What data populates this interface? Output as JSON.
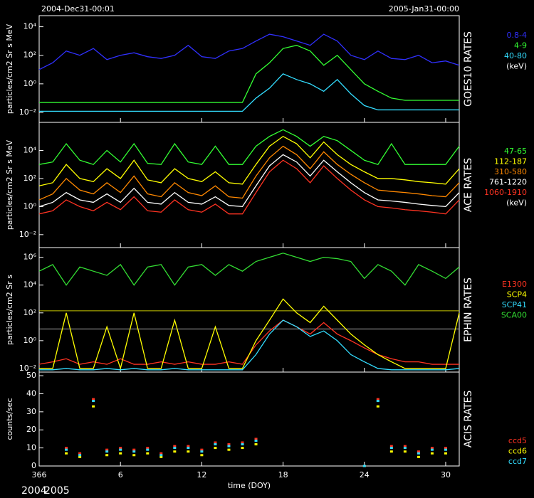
{
  "header": {
    "start": "2004-Dec31-00:01",
    "end": "2005-Jan31-00:00"
  },
  "year_labels": [
    "2004",
    "2005"
  ],
  "chart_data": [
    {
      "type": "line",
      "title": "GOES10 RATES",
      "y_label": "particles/cm2 Sr s MeV",
      "log_scale": true,
      "ylim": [
        0.002,
        60000
      ],
      "yticks": [
        {
          "value": 0.01,
          "label": "10⁻²"
        },
        {
          "value": 1,
          "label": "10⁰"
        },
        {
          "value": 100,
          "label": "10²"
        },
        {
          "value": 10000,
          "label": "10⁴"
        }
      ],
      "legend_unit": "(keV)",
      "x": [
        366,
        367,
        368,
        369,
        370,
        371,
        372,
        373,
        374,
        375,
        376,
        377,
        378,
        379,
        380,
        381,
        382,
        383,
        384,
        385,
        386,
        387,
        388,
        389,
        390,
        391,
        392,
        393,
        394,
        395,
        396,
        397
      ],
      "series": [
        {
          "name": "0.8-4",
          "color": "#3030ff",
          "values": [
            10,
            30,
            200,
            100,
            300,
            50,
            100,
            150,
            80,
            60,
            100,
            500,
            80,
            60,
            200,
            300,
            1000,
            3000,
            2000,
            1000,
            500,
            3000,
            1000,
            100,
            50,
            200,
            60,
            50,
            100,
            30,
            40,
            20
          ]
        },
        {
          "name": "4-9",
          "color": "#33ff33",
          "values": [
            0.05,
            0.05,
            0.05,
            0.05,
            0.05,
            0.05,
            0.05,
            0.05,
            0.05,
            0.05,
            0.05,
            0.05,
            0.05,
            0.05,
            0.05,
            0.05,
            5,
            30,
            300,
            500,
            200,
            20,
            100,
            10,
            1,
            0.3,
            0.1,
            0.07,
            0.07,
            0.07,
            0.07,
            0.07
          ]
        },
        {
          "name": "40-80",
          "color": "#33ddff",
          "values": [
            0.012,
            0.012,
            0.012,
            0.012,
            0.012,
            0.012,
            0.012,
            0.012,
            0.012,
            0.012,
            0.012,
            0.012,
            0.012,
            0.012,
            0.012,
            0.012,
            0.1,
            0.5,
            5,
            2,
            1,
            0.3,
            2,
            0.2,
            0.03,
            0.015,
            0.015,
            0.015,
            0.015,
            0.015,
            0.015,
            0.015
          ]
        }
      ]
    },
    {
      "type": "line",
      "title": "ACE RATES",
      "y_label": "particles/cm2 Sr s MeV",
      "log_scale": true,
      "ylim": [
        0.0012,
        1000000
      ],
      "yticks": [
        {
          "value": 0.01,
          "label": "10⁻²"
        },
        {
          "value": 1,
          "label": "10⁰"
        },
        {
          "value": 100,
          "label": "10²"
        },
        {
          "value": 10000,
          "label": "10⁴"
        }
      ],
      "legend_unit": "(keV)",
      "x": [
        366,
        367,
        368,
        369,
        370,
        371,
        372,
        373,
        374,
        375,
        376,
        377,
        378,
        379,
        380,
        381,
        382,
        383,
        384,
        385,
        386,
        387,
        388,
        389,
        390,
        391,
        392,
        393,
        394,
        395,
        396,
        397
      ],
      "series": [
        {
          "name": "47-65",
          "color": "#33ff33",
          "values": [
            1000,
            1500,
            30000,
            2000,
            1000,
            10000,
            1500,
            30000,
            1200,
            1000,
            30000,
            1500,
            1000,
            20000,
            1000,
            1000,
            20000,
            100000,
            300000,
            100000,
            20000,
            100000,
            50000,
            10000,
            2000,
            1000,
            30000,
            1000,
            1000,
            1000,
            1000,
            20000
          ]
        },
        {
          "name": "112-187",
          "color": "#ffff00",
          "values": [
            30,
            50,
            1000,
            100,
            60,
            500,
            100,
            2000,
            80,
            50,
            500,
            100,
            60,
            300,
            50,
            40,
            1000,
            20000,
            100000,
            30000,
            3000,
            40000,
            5000,
            1000,
            300,
            100,
            100,
            80,
            60,
            50,
            40,
            500
          ]
        },
        {
          "name": "310-580",
          "color": "#ff8800",
          "values": [
            3,
            8,
            100,
            15,
            8,
            50,
            10,
            150,
            8,
            5,
            50,
            10,
            6,
            30,
            5,
            4,
            150,
            3000,
            20000,
            5000,
            500,
            8000,
            1000,
            200,
            50,
            15,
            12,
            10,
            8,
            6,
            5,
            50
          ]
        },
        {
          "name": "761-1220",
          "color": "#ffffff",
          "values": [
            1,
            2,
            10,
            3,
            2,
            8,
            2,
            20,
            2,
            1.5,
            10,
            2,
            1.5,
            5,
            1.2,
            1,
            30,
            800,
            5000,
            1500,
            150,
            2000,
            300,
            50,
            10,
            3,
            2.5,
            2,
            1.5,
            1.2,
            1,
            10
          ]
        },
        {
          "name": "1060-1910",
          "color": "#ff3322",
          "values": [
            0.3,
            0.5,
            3,
            1,
            0.5,
            2,
            0.6,
            5,
            0.5,
            0.4,
            3,
            0.6,
            0.4,
            1.5,
            0.3,
            0.3,
            10,
            300,
            2000,
            500,
            50,
            800,
            100,
            15,
            3,
            1,
            0.8,
            0.6,
            0.5,
            0.4,
            0.3,
            3
          ]
        }
      ]
    },
    {
      "type": "line",
      "title": "EPHIN RATES",
      "y_label": "particles/cm2 Sr s",
      "log_scale": true,
      "ylim": [
        0.0055,
        5000000
      ],
      "yticks": [
        {
          "value": 0.01,
          "label": "10⁻²"
        },
        {
          "value": 1,
          "label": "10⁰"
        },
        {
          "value": 100,
          "label": "10²"
        },
        {
          "value": 10000,
          "label": "10⁴"
        },
        {
          "value": 1000000,
          "label": "10⁶"
        }
      ],
      "hlines": [
        {
          "value": 140,
          "color": "#c8c800"
        },
        {
          "value": 7,
          "color": "#aaaaaa"
        }
      ],
      "x": [
        366,
        367,
        368,
        369,
        370,
        371,
        372,
        373,
        374,
        375,
        376,
        377,
        378,
        379,
        380,
        381,
        382,
        383,
        384,
        385,
        386,
        387,
        388,
        389,
        390,
        391,
        392,
        393,
        394,
        395,
        396,
        397
      ],
      "series": [
        {
          "name": "E1300",
          "color": "#ff3322",
          "values": [
            0.02,
            0.03,
            0.05,
            0.02,
            0.03,
            0.02,
            0.05,
            0.02,
            0.02,
            0.03,
            0.02,
            0.03,
            0.02,
            0.02,
            0.03,
            0.02,
            0.5,
            5,
            30,
            10,
            3,
            20,
            3,
            1,
            0.3,
            0.1,
            0.05,
            0.03,
            0.03,
            0.02,
            0.02,
            0.02
          ]
        },
        {
          "name": "SCP4",
          "color": "#ffff00",
          "values": [
            0.01,
            0.01,
            100,
            0.01,
            0.01,
            10,
            0.01,
            100,
            0.01,
            0.01,
            30,
            0.01,
            0.01,
            10,
            0.01,
            0.01,
            1,
            30,
            1000,
            100,
            20,
            300,
            30,
            3,
            0.5,
            0.1,
            0.03,
            0.01,
            0.01,
            0.01,
            0.01,
            100
          ]
        },
        {
          "name": "SCP41",
          "color": "#33ddff",
          "values": [
            0.008,
            0.008,
            0.01,
            0.008,
            0.008,
            0.01,
            0.008,
            0.01,
            0.008,
            0.008,
            0.01,
            0.008,
            0.008,
            0.008,
            0.008,
            0.008,
            0.1,
            3,
            30,
            10,
            2,
            5,
            1,
            0.1,
            0.03,
            0.01,
            0.008,
            0.008,
            0.008,
            0.008,
            0.008,
            0.01
          ]
        },
        {
          "name": "SCA00",
          "color": "#33dd33",
          "values": [
            100000,
            300000,
            10000,
            200000,
            100000,
            50000,
            300000,
            10000,
            200000,
            300000,
            10000,
            200000,
            300000,
            50000,
            300000,
            100000,
            500000,
            1000000,
            2000000,
            1000000,
            500000,
            1000000,
            800000,
            500000,
            30000,
            300000,
            100000,
            10000,
            300000,
            100000,
            30000,
            200000
          ]
        }
      ]
    },
    {
      "type": "scatter",
      "title": "ACIS RATES",
      "y_label": "counts/sec",
      "log_scale": false,
      "ylim": [
        0,
        52
      ],
      "yticks": [
        0,
        10,
        20,
        30,
        40,
        50
      ],
      "xlim": [
        366,
        397
      ],
      "xticks": [
        366,
        {
          "value": 372,
          "label": "6"
        },
        {
          "value": 378,
          "label": "12"
        },
        {
          "value": 384,
          "label": "18"
        },
        {
          "value": 390,
          "label": "24"
        },
        {
          "value": 396,
          "label": "30"
        }
      ],
      "x_label": "time (DOY)",
      "x": [
        366,
        367,
        368,
        369,
        370,
        371,
        372,
        373,
        374,
        375,
        376,
        377,
        378,
        379,
        380,
        381,
        382,
        383,
        384,
        385,
        386,
        387,
        388,
        389,
        390,
        391,
        392,
        393,
        394,
        395,
        396,
        397
      ],
      "series": [
        {
          "name": "ccd5",
          "color": "#ff3322",
          "values": [
            null,
            null,
            10,
            7,
            37,
            9,
            10,
            9,
            10,
            7,
            11,
            11,
            9,
            13,
            12,
            13,
            15,
            null,
            null,
            null,
            null,
            null,
            null,
            null,
            0,
            37,
            11,
            11,
            8,
            10,
            10,
            null
          ]
        },
        {
          "name": "ccd6",
          "color": "#ffff00",
          "values": [
            null,
            null,
            7,
            5,
            33,
            6,
            7,
            6,
            7,
            5,
            8,
            8,
            6,
            10,
            9,
            10,
            12,
            null,
            null,
            null,
            null,
            null,
            null,
            null,
            0,
            33,
            8,
            8,
            5,
            7,
            7,
            null
          ]
        },
        {
          "name": "ccd7",
          "color": "#33ddff",
          "values": [
            null,
            null,
            9,
            6,
            36,
            8,
            9,
            8,
            9,
            6,
            10,
            10,
            8,
            12,
            11,
            12,
            14,
            null,
            null,
            null,
            null,
            null,
            null,
            null,
            0,
            36,
            10,
            10,
            7,
            9,
            9,
            null
          ]
        }
      ]
    }
  ]
}
